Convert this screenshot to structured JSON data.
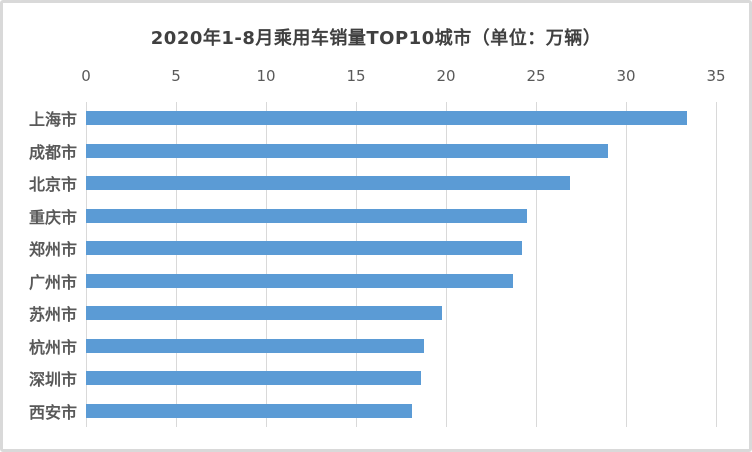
{
  "chart_data": {
    "type": "bar",
    "orientation": "horizontal",
    "title": "2020年1-8月乘用车销量TOP10城市（单位：万辆）",
    "categories": [
      "上海市",
      "成都市",
      "北京市",
      "重庆市",
      "郑州市",
      "广州市",
      "苏州市",
      "杭州市",
      "深圳市",
      "西安市"
    ],
    "values": [
      33.4,
      29.0,
      26.9,
      24.5,
      24.2,
      23.7,
      19.8,
      18.8,
      18.6,
      18.1
    ],
    "xlabel": "",
    "ylabel": "",
    "xlim": [
      0,
      35
    ],
    "x_ticks": [
      0,
      5,
      10,
      15,
      20,
      25,
      30,
      35
    ],
    "tick_position": "top",
    "grid": "vertical",
    "legend_position": "none",
    "colors": {
      "bar": "#5B9BD5",
      "gridline": "#D9D9D9",
      "tick_label": "#595959",
      "category_label": "#595959",
      "title": "#404040",
      "frame_border": "#D9D9D9",
      "background": "#FFFFFF"
    }
  }
}
